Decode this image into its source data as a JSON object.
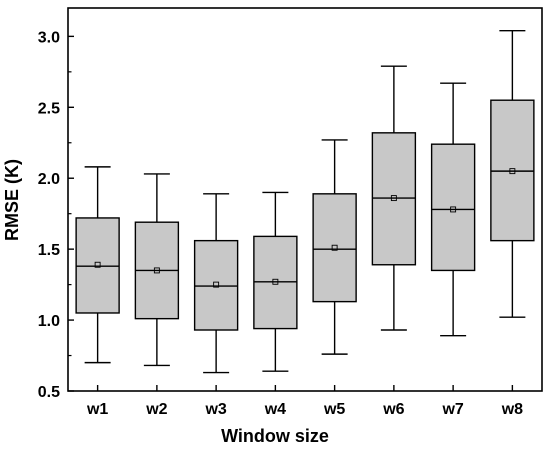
{
  "chart_data": {
    "type": "box",
    "categories": [
      "w1",
      "w2",
      "w3",
      "w4",
      "w5",
      "w6",
      "w7",
      "w8"
    ],
    "xlabel": "Window size",
    "ylabel": "RMSE (K)",
    "ylim": [
      0.5,
      3.2
    ],
    "yticks": [
      "0.5",
      "1.0",
      "1.5",
      "2.0",
      "2.5",
      "3.0"
    ],
    "grid": false,
    "box_color": "#c8c8c8",
    "boxes": [
      {
        "min": 0.7,
        "q1": 1.05,
        "median": 1.38,
        "q3": 1.72,
        "max": 2.08,
        "mean": 1.39
      },
      {
        "min": 0.68,
        "q1": 1.01,
        "median": 1.35,
        "q3": 1.69,
        "max": 2.03,
        "mean": 1.35
      },
      {
        "min": 0.63,
        "q1": 0.93,
        "median": 1.24,
        "q3": 1.56,
        "max": 1.89,
        "mean": 1.25
      },
      {
        "min": 0.64,
        "q1": 0.94,
        "median": 1.27,
        "q3": 1.59,
        "max": 1.9,
        "mean": 1.27
      },
      {
        "min": 0.76,
        "q1": 1.13,
        "median": 1.5,
        "q3": 1.89,
        "max": 2.27,
        "mean": 1.51
      },
      {
        "min": 0.93,
        "q1": 1.39,
        "median": 1.86,
        "q3": 2.32,
        "max": 2.79,
        "mean": 1.86
      },
      {
        "min": 0.89,
        "q1": 1.35,
        "median": 1.78,
        "q3": 2.24,
        "max": 2.67,
        "mean": 1.78
      },
      {
        "min": 1.02,
        "q1": 1.56,
        "median": 2.05,
        "q3": 2.55,
        "max": 3.04,
        "mean": 2.05
      }
    ]
  }
}
